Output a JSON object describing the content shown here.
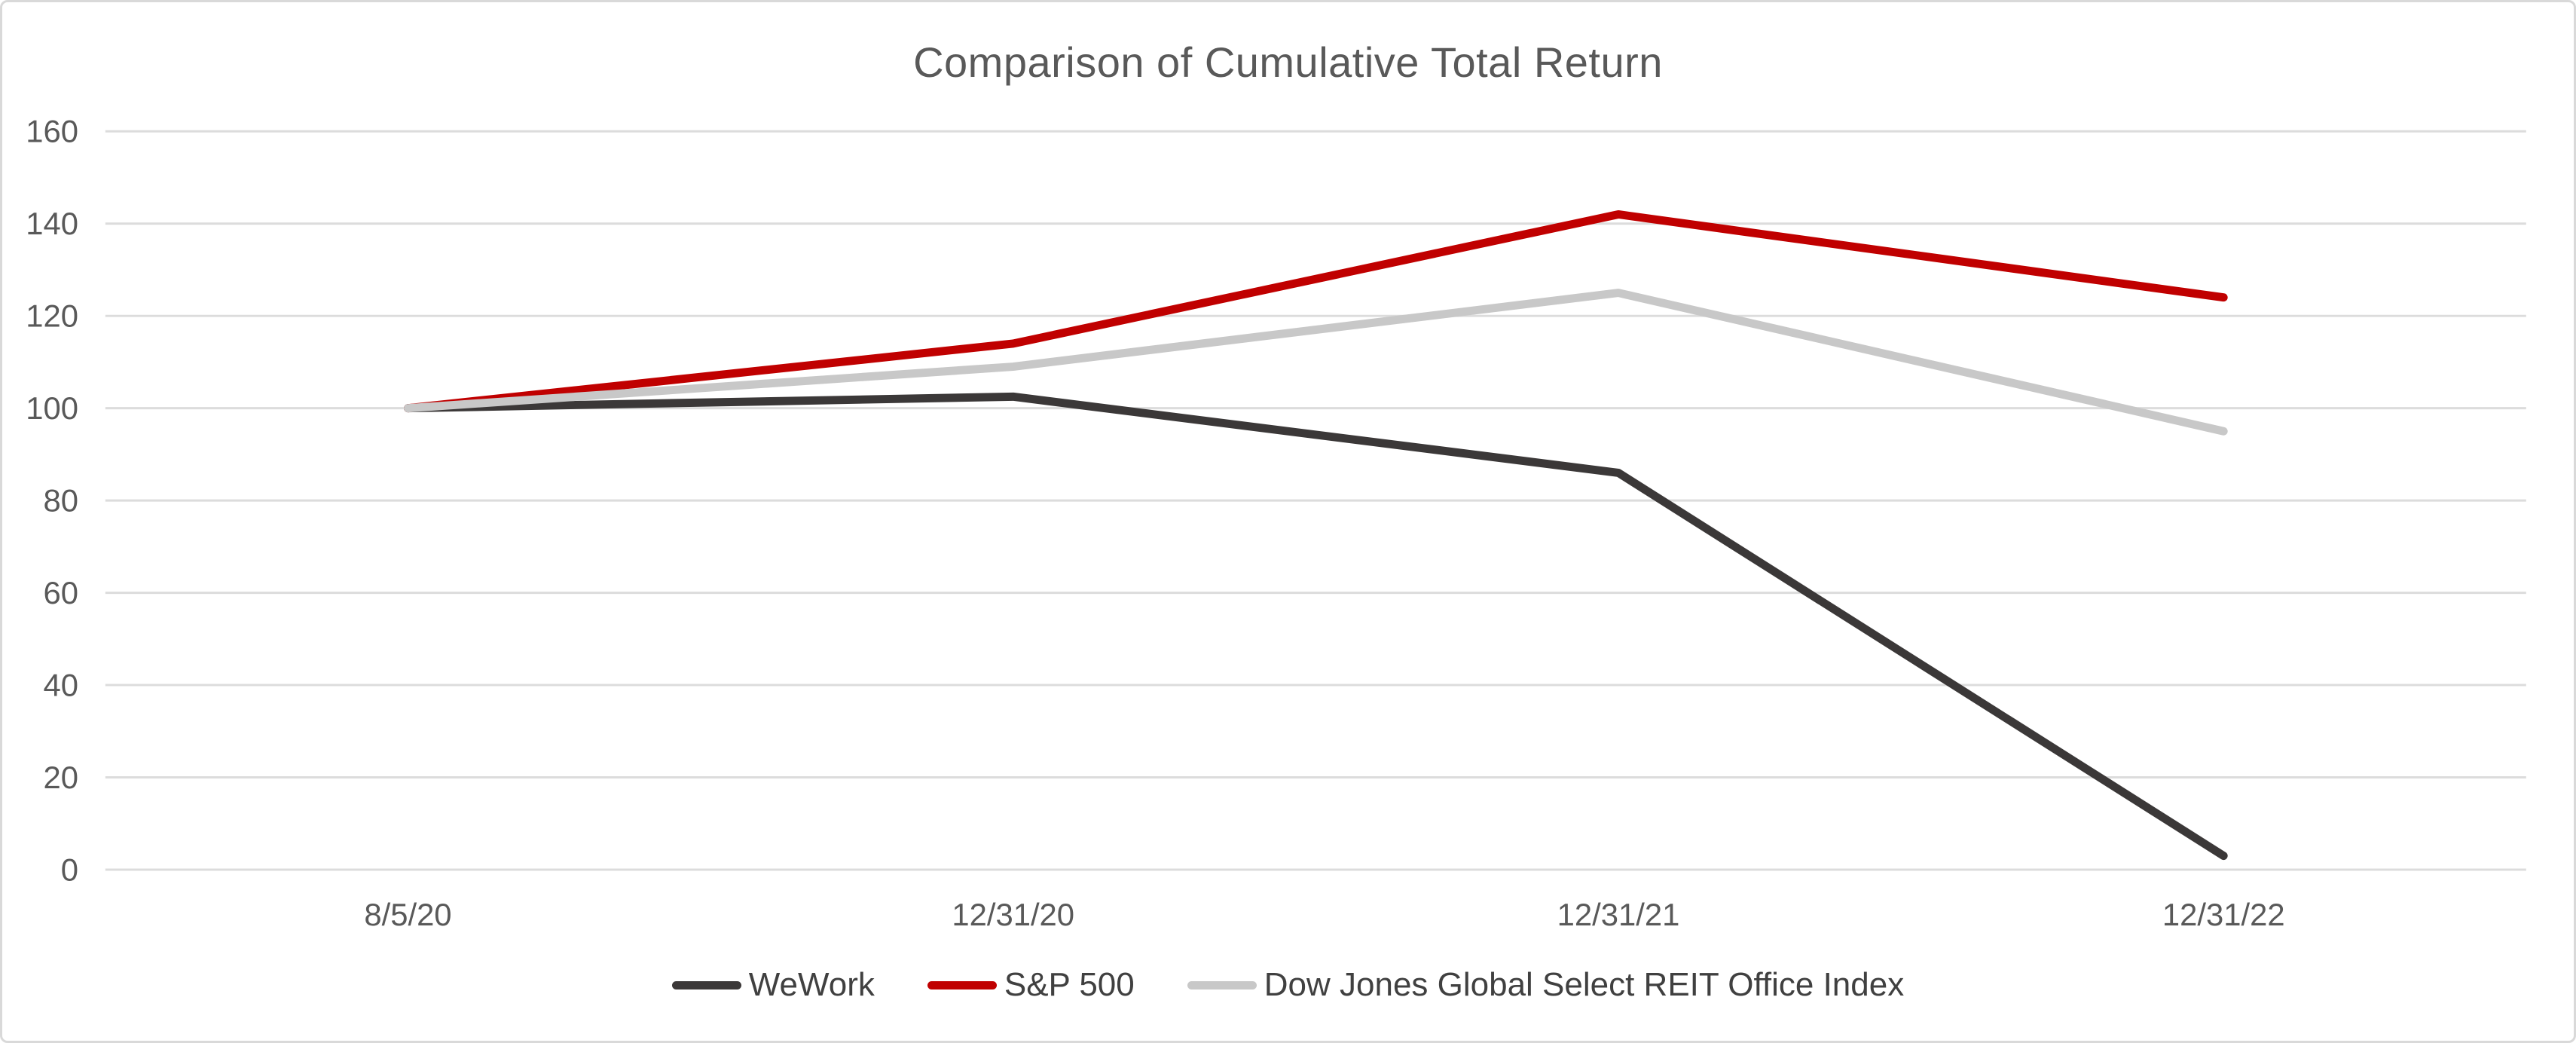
{
  "chart_data": {
    "type": "line",
    "title": "Comparison of Cumulative Total Return",
    "categories": [
      "8/5/20",
      "12/31/20",
      "12/31/21",
      "12/31/22"
    ],
    "series": [
      {
        "name": "WeWork",
        "color": "#3B3838",
        "values": [
          100,
          102.5,
          86,
          3
        ]
      },
      {
        "name": "S&P 500",
        "color": "#C00000",
        "values": [
          100,
          114,
          142,
          124
        ]
      },
      {
        "name": "Dow Jones Global Select REIT Office Index",
        "color": "#C8C8C8",
        "values": [
          100,
          109,
          125,
          95
        ]
      }
    ],
    "xlabel": "",
    "ylabel": "",
    "ylim": [
      0,
      160
    ],
    "yticks": [
      0,
      20,
      40,
      60,
      80,
      100,
      120,
      140,
      160
    ],
    "grid": true,
    "legend_position": "bottom"
  },
  "style": {
    "background": "#FFFFFF",
    "border_color": "#D9D9D9",
    "gridline_color": "#DCDCDC",
    "axis_label_color": "#595959",
    "title_color": "#595959",
    "legend_text_color": "#404040"
  }
}
